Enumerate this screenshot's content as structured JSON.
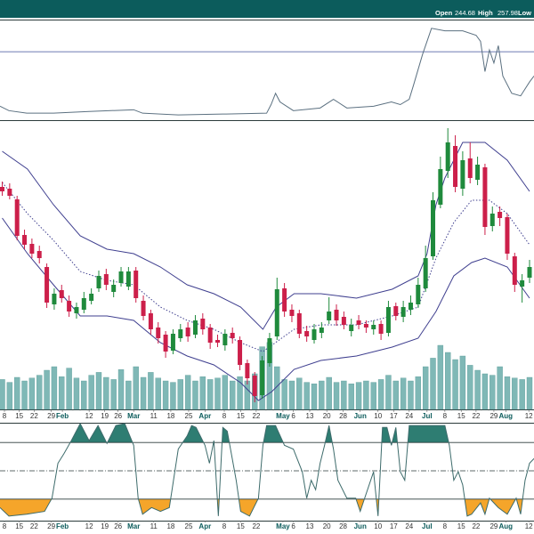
{
  "header": {
    "quote": [
      {
        "label": "Open",
        "value": 244.68
      },
      {
        "label": "High",
        "value": 257.98
      },
      {
        "label": "Low"
      }
    ]
  },
  "chart_data": [
    {
      "type": "line",
      "xlim": [
        -0.3,
        71.6
      ],
      "ylim": [
        0,
        100
      ],
      "color": "#5b7080",
      "levels": [
        69
      ],
      "level_color": "#3f4f9a",
      "x": [
        -0.3,
        0.9,
        3.3,
        6.9,
        11.7,
        17.7,
        18.9,
        23.7,
        29.7,
        35.6,
        36.2,
        36.8,
        37.4,
        39.2,
        42.8,
        44.6,
        46.4,
        50.0,
        52.4,
        53.6,
        54.8,
        55.4,
        56.6,
        57.8,
        59.6,
        62.0,
        63.8,
        64.4,
        65.0,
        65.6,
        66.2,
        66.8,
        67.4,
        68.6,
        69.8,
        71.0,
        71.6
      ],
      "values": [
        13.3,
        8.8,
        6.2,
        6.2,
        8,
        9.7,
        6.2,
        4.4,
        5.3,
        6.2,
        15,
        26.5,
        17.7,
        8.8,
        11.5,
        20.4,
        11.5,
        13.3,
        17.7,
        15,
        20.4,
        35.4,
        66.4,
        92.9,
        90.3,
        90.3,
        85.8,
        79.6,
        48.7,
        70.8,
        57.5,
        75.2,
        44.2,
        26.5,
        23.9,
        38.1,
        44.2
      ]
    },
    {
      "type": "candlestick",
      "xlim": [
        -0.3,
        71.6
      ],
      "ylim": [
        170,
        330
      ],
      "up_color": "#1f8a3c",
      "down_color": "#cc1f4a",
      "x": [
        0,
        1,
        2,
        3,
        4,
        5,
        6,
        7,
        8,
        9,
        10,
        11,
        12,
        13,
        14,
        15,
        16,
        17,
        18,
        19,
        20,
        21,
        22,
        23,
        24,
        25,
        26,
        27,
        28,
        29,
        30,
        31,
        32,
        33,
        34,
        35,
        36,
        37,
        38,
        39,
        40,
        41,
        42,
        43,
        44,
        45,
        46,
        47,
        48,
        49,
        50,
        51,
        52,
        53,
        54,
        55,
        56,
        57,
        58,
        59,
        60,
        61,
        62,
        63,
        64,
        65,
        66,
        67,
        68,
        69,
        70,
        71
      ],
      "open": [
        295,
        294,
        288,
        268,
        263,
        259,
        250,
        229,
        237,
        231,
        224,
        226,
        231,
        238,
        246,
        236,
        241,
        239,
        248,
        231,
        224,
        216,
        212,
        203,
        210,
        216,
        212,
        221,
        216,
        209,
        206,
        213,
        209,
        196,
        189,
        178,
        196,
        211,
        238,
        226,
        224,
        214,
        209,
        213,
        220,
        226,
        222,
        214,
        220,
        218,
        215,
        218,
        213,
        228,
        222,
        226,
        229,
        238,
        256,
        285,
        304,
        318,
        294,
        311,
        299,
        306,
        273,
        281,
        278,
        256,
        239,
        244
      ],
      "high": [
        298,
        297,
        290,
        271,
        266,
        262,
        252,
        238,
        240,
        234,
        230,
        236,
        238,
        248,
        249,
        243,
        250,
        250,
        250,
        234,
        226,
        219,
        214,
        215,
        218,
        219,
        223,
        224,
        218,
        212,
        215,
        216,
        211,
        198,
        191,
        200,
        213,
        244,
        241,
        229,
        226,
        217,
        218,
        219,
        233,
        229,
        225,
        221,
        223,
        220,
        220,
        220,
        231,
        230,
        231,
        234,
        244,
        262,
        292,
        312,
        328,
        324,
        315,
        320,
        312,
        308,
        284,
        284,
        280,
        258,
        246,
        254
      ],
      "low": [
        290,
        288,
        265,
        260,
        255,
        252,
        227,
        226,
        230,
        222,
        221,
        224,
        229,
        236,
        237,
        233,
        239,
        237,
        230,
        220,
        212,
        207,
        199,
        201,
        208,
        208,
        210,
        212,
        204,
        205,
        203,
        207,
        192,
        184,
        174,
        176,
        194,
        209,
        222,
        219,
        210,
        208,
        207,
        210,
        218,
        217,
        215,
        211,
        215,
        213,
        212,
        209,
        211,
        220,
        219,
        223,
        227,
        236,
        254,
        283,
        300,
        292,
        290,
        297,
        296,
        268,
        270,
        273,
        254,
        236,
        230,
        241
      ],
      "close": [
        292.5,
        290,
        267.5,
        262.5,
        257.5,
        255,
        230,
        235,
        232.5,
        225,
        227.5,
        232.5,
        235,
        245,
        240,
        240,
        247.5,
        247.5,
        232.5,
        222.5,
        215,
        210,
        202.5,
        212.5,
        215,
        211,
        220,
        215,
        207.5,
        207.5,
        212.5,
        210,
        195,
        187.5,
        177.5,
        197.5,
        210,
        237.5,
        225,
        222.5,
        212.5,
        211,
        215,
        216,
        225,
        220,
        217.5,
        217.5,
        217.5,
        216,
        217.5,
        212.5,
        227.5,
        222.5,
        227.5,
        230,
        240,
        255,
        287.5,
        305,
        320,
        295,
        310,
        300,
        307.5,
        272.5,
        280,
        277.5,
        257.5,
        240,
        242.5,
        250
      ],
      "bands": {
        "color": "#3f3f8f",
        "upper": {
          "x": [
            0,
            3.4,
            6.9,
            10.5,
            14.1,
            17.7,
            21.3,
            24.9,
            28.5,
            32.1,
            35.1,
            36.9,
            39.3,
            42.9,
            47.7,
            52.5,
            56.0,
            57.2,
            58.4,
            59.6,
            62.0,
            65.0,
            68.0,
            71.0
          ],
          "values": [
            315,
            305,
            285,
            267.5,
            260,
            257.5,
            250,
            240,
            235,
            227.5,
            215,
            227.5,
            235,
            235,
            232.5,
            237.5,
            245,
            257.5,
            285,
            300,
            320,
            320,
            310,
            292.5
          ]
        },
        "middle": {
          "x": [
            0,
            3.4,
            6.9,
            10.5,
            14.1,
            17.7,
            21.3,
            24.9,
            28.5,
            32.1,
            35.1,
            39.3,
            42.9,
            47.7,
            52.5,
            56.0,
            58.4,
            60.8,
            63.2,
            65.6,
            68.0,
            71.0
          ],
          "values": [
            297.5,
            280,
            265,
            247.5,
            242.5,
            240,
            227.5,
            220,
            215,
            207.5,
            202.5,
            215,
            217.5,
            217.5,
            222.5,
            227.5,
            255,
            275,
            287.5,
            287.5,
            280,
            262.5
          ]
        },
        "lower": {
          "x": [
            0,
            3.4,
            6.9,
            10.5,
            14.1,
            17.7,
            21.3,
            24.9,
            28.5,
            32.1,
            34.5,
            36.3,
            39.3,
            42.9,
            47.7,
            52.5,
            56.0,
            58.4,
            60.8,
            63.2,
            65.0,
            68.0,
            71.0
          ],
          "values": [
            277.5,
            257.5,
            240,
            222.5,
            222.5,
            220,
            207.5,
            200,
            195,
            185,
            175,
            180,
            192.5,
            197.5,
            200,
            205,
            210,
            225,
            245,
            252.5,
            255,
            250,
            232.5
          ]
        }
      },
      "volume": {
        "ylim": [
          0,
          100
        ],
        "color": "#7fb8b6",
        "values": [
          42,
          38,
          45,
          40,
          44,
          48,
          55,
          60,
          46,
          58,
          44,
          40,
          48,
          52,
          45,
          42,
          56,
          40,
          60,
          45,
          52,
          44,
          40,
          38,
          42,
          48,
          40,
          46,
          42,
          44,
          48,
          40,
          46,
          40,
          50,
          88,
          94,
          60,
          42,
          40,
          44,
          38,
          36,
          40,
          45,
          38,
          40,
          36,
          38,
          40,
          38,
          42,
          48,
          40,
          44,
          40,
          46,
          60,
          72,
          90,
          80,
          70,
          75,
          62,
          55,
          50,
          48,
          60,
          46,
          44,
          42,
          45
        ]
      },
      "xticks": [
        {
          "value": 0.3,
          "label": "8"
        },
        {
          "value": 2.3,
          "label": "15"
        },
        {
          "value": 4.3,
          "label": "22"
        },
        {
          "value": 6.6,
          "label": "29"
        },
        {
          "value": 8.1,
          "label": "Feb"
        },
        {
          "value": 11.7,
          "label": "12"
        },
        {
          "value": 13.8,
          "label": "19"
        },
        {
          "value": 15.6,
          "label": "26"
        },
        {
          "value": 17.7,
          "label": "Mar"
        },
        {
          "value": 20.4,
          "label": "11"
        },
        {
          "value": 22.7,
          "label": "18"
        },
        {
          "value": 25.1,
          "label": "25"
        },
        {
          "value": 27.3,
          "label": "Apr"
        },
        {
          "value": 29.9,
          "label": "8"
        },
        {
          "value": 32.1,
          "label": "15"
        },
        {
          "value": 34.2,
          "label": "22"
        },
        {
          "value": 37.8,
          "label": "May"
        },
        {
          "value": 39.2,
          "label": "6"
        },
        {
          "value": 41.4,
          "label": "13"
        },
        {
          "value": 43.7,
          "label": "20"
        },
        {
          "value": 45.9,
          "label": "28"
        },
        {
          "value": 48.2,
          "label": "Jun"
        },
        {
          "value": 50.6,
          "label": "10"
        },
        {
          "value": 52.7,
          "label": "17"
        },
        {
          "value": 54.8,
          "label": "24"
        },
        {
          "value": 57.2,
          "label": "Jul"
        },
        {
          "value": 59.6,
          "label": "8"
        },
        {
          "value": 61.8,
          "label": "15"
        },
        {
          "value": 63.8,
          "label": "22"
        },
        {
          "value": 66.2,
          "label": "29"
        },
        {
          "value": 67.8,
          "label": "Aug"
        },
        {
          "value": 70.9,
          "label": "12"
        }
      ]
    },
    {
      "type": "line",
      "xlim": [
        -0.3,
        71.6
      ],
      "ylim": [
        0,
        100
      ],
      "color": "#3d6b6b",
      "levels": [
        80,
        50,
        20
      ],
      "level_color": "#2b3b3b",
      "upper_fill": "#2e7d72",
      "lower_fill": "#f5a52a",
      "x": [
        -0.3,
        0.9,
        3.3,
        5.7,
        6.7,
        7.5,
        8.3,
        9.3,
        10.5,
        11.7,
        12.9,
        14.1,
        15.3,
        16.5,
        17.7,
        18.3,
        18.9,
        20.1,
        21.3,
        22.5,
        23.7,
        24.9,
        25.5,
        26.1,
        27.3,
        27.9,
        28.5,
        29.1,
        29.7,
        30.3,
        31.5,
        32.1,
        33.3,
        34.5,
        35.1,
        35.6,
        36.8,
        38.0,
        39.2,
        40.4,
        41.0,
        41.6,
        42.2,
        42.8,
        43.4,
        44.0,
        44.6,
        45.2,
        46.4,
        47.6,
        48.2,
        48.8,
        50.0,
        50.6,
        51.2,
        51.8,
        52.4,
        53.0,
        53.6,
        54.2,
        54.8,
        59.6,
        60.2,
        60.8,
        61.4,
        62.0,
        62.6,
        63.2,
        64.4,
        65.0,
        65.6,
        66.8,
        68.0,
        69.2,
        69.8,
        70.4,
        71.0,
        71.6
      ],
      "values": [
        11,
        2,
        4,
        7,
        21,
        58,
        68,
        82,
        100,
        82,
        98,
        79,
        98,
        100,
        77,
        21,
        4,
        11,
        7,
        11,
        73,
        87,
        98,
        96,
        77,
        58,
        82,
        2,
        96,
        92,
        40,
        7,
        2,
        21,
        77,
        98,
        98,
        77,
        73,
        49,
        21,
        40,
        30,
        58,
        77,
        98,
        73,
        40,
        21,
        21,
        7,
        21,
        49,
        2,
        96,
        96,
        77,
        96,
        49,
        40,
        98,
        98,
        77,
        40,
        49,
        35,
        2,
        4,
        16,
        4,
        21,
        11,
        4,
        21,
        4,
        40,
        58,
        63
      ]
    }
  ]
}
